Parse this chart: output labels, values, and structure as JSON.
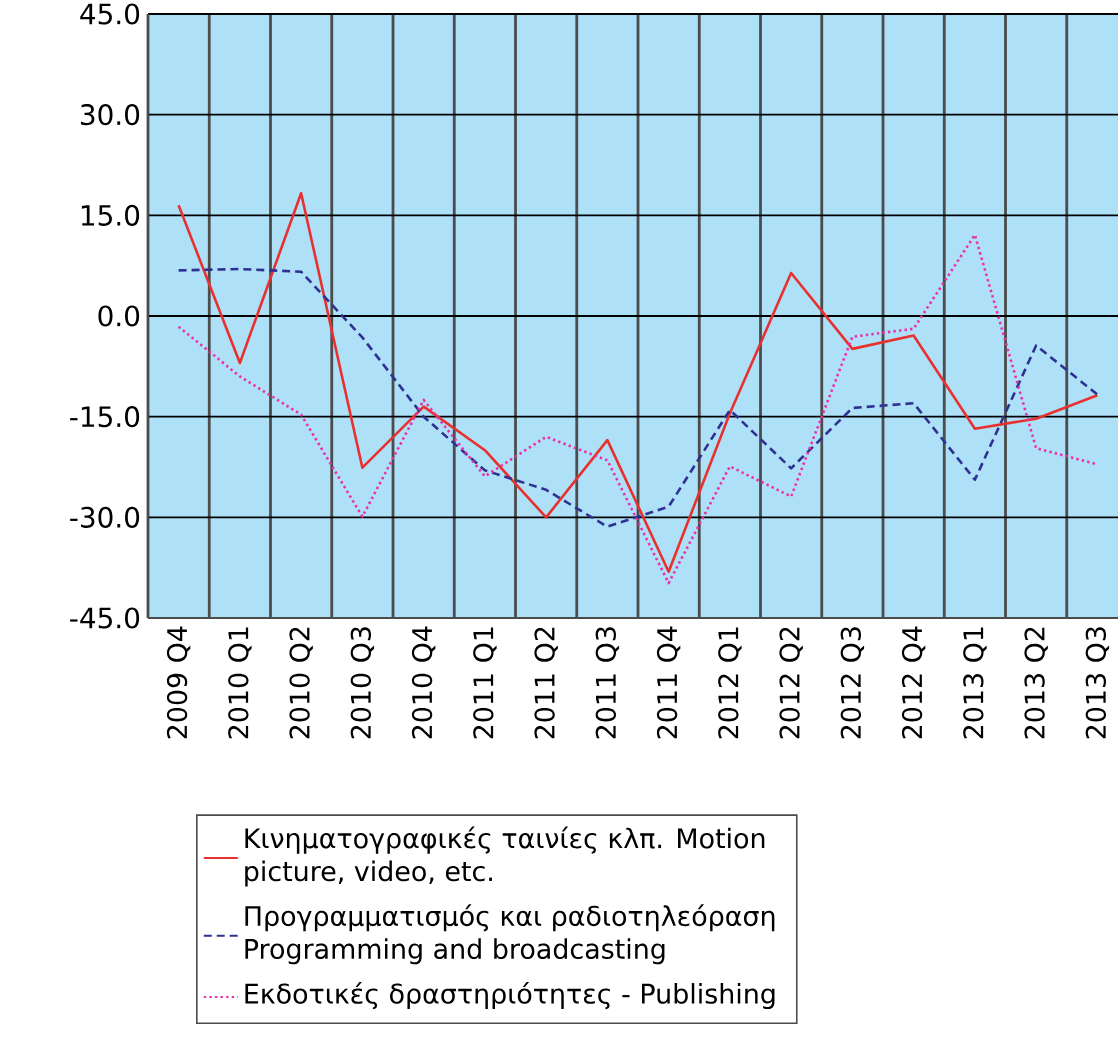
{
  "chart_data": {
    "type": "line",
    "categories": [
      "2009 Q4",
      "2010 Q1",
      "2010 Q2",
      "2010 Q3",
      "2010 Q4",
      "2011 Q1",
      "2011 Q2",
      "2011 Q3",
      "2011 Q4",
      "2012 Q1",
      "2012 Q2",
      "2012 Q3",
      "2012 Q4",
      "2013 Q1",
      "2013 Q2",
      "2013 Q3"
    ],
    "series": [
      {
        "name": "Κινηματογραφικές ταινίες κλπ. Motion picture, video, etc.",
        "color": "#e8312f",
        "line_style": "solid",
        "values": [
          16.5,
          -7.0,
          18.3,
          -22.6,
          -13.5,
          -20.0,
          -30.0,
          -18.5,
          -38.1,
          -14.5,
          6.4,
          -4.9,
          -2.9,
          -16.8,
          -15.3,
          -11.8
        ]
      },
      {
        "name": "Προγραμματισμός και ραδιοτηλεόραση Programming and broadcasting",
        "color": "#2e3192",
        "line_style": "dashed",
        "values": [
          6.8,
          7.0,
          6.6,
          -3.2,
          -15.0,
          -23.0,
          -25.9,
          -31.4,
          -28.4,
          -14.0,
          -22.7,
          -13.7,
          -13.0,
          -24.4,
          -4.4,
          -11.7
        ]
      },
      {
        "name": "Εκδοτικές δραστηριότητες - Publishing",
        "color": "#ec2fa8",
        "line_style": "dotted",
        "values": [
          -1.6,
          -9.0,
          -14.7,
          -29.9,
          -12.5,
          -23.9,
          -18.0,
          -21.5,
          -39.8,
          -22.4,
          -26.9,
          -3.1,
          -1.9,
          12.1,
          -19.7,
          -22.1
        ]
      }
    ],
    "ylim": [
      -45,
      45
    ],
    "yticks": [
      {
        "value": -45,
        "label": "-45.0"
      },
      {
        "value": -30,
        "label": "-30.0"
      },
      {
        "value": -15,
        "label": "-15.0"
      },
      {
        "value": 0,
        "label": "0.0"
      },
      {
        "value": 15,
        "label": "15.0"
      },
      {
        "value": 30,
        "label": "30.0"
      },
      {
        "value": 45,
        "label": "45.0"
      }
    ],
    "grid": true,
    "legend": "bottom",
    "marker": "none"
  }
}
